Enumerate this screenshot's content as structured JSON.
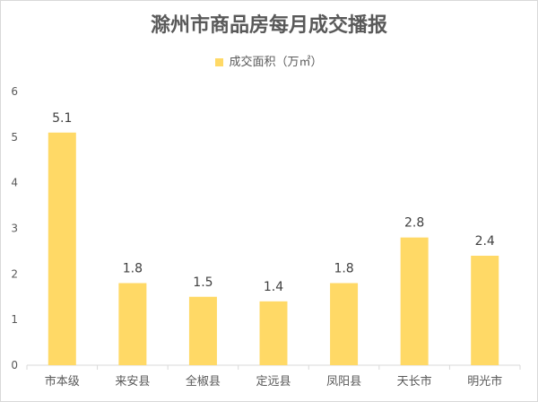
{
  "chart_data": {
    "type": "bar",
    "title": "滁州市商品房每月成交播报",
    "legend": {
      "label": "成交面积（万㎡）",
      "position": "top-center"
    },
    "categories": [
      "市本级",
      "来安县",
      "全椒县",
      "定远县",
      "凤阳县",
      "天长市",
      "明光市"
    ],
    "series": [
      {
        "name": "成交面积（万㎡）",
        "values": [
          5.1,
          1.8,
          1.5,
          1.4,
          1.8,
          2.8,
          2.4
        ]
      }
    ],
    "data_labels": [
      "5.1",
      "1.8",
      "1.5",
      "1.4",
      "1.8",
      "2.8",
      "2.4"
    ],
    "y_ticks": [
      "0",
      "1",
      "2",
      "3",
      "4",
      "5",
      "6"
    ],
    "ylim": [
      0,
      6
    ],
    "grid": false,
    "colors": {
      "bar": "#FFD966",
      "axis": "#d9d9d9",
      "text": "#595959"
    }
  }
}
